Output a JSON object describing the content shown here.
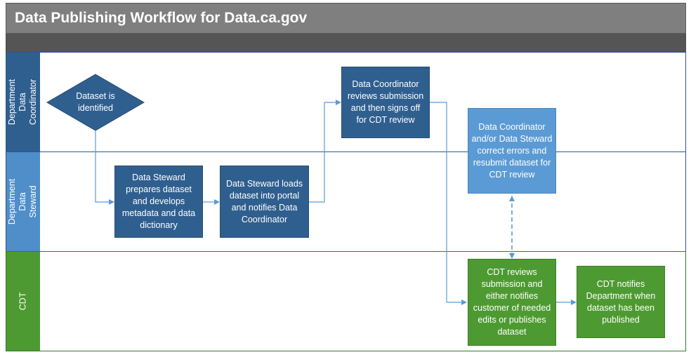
{
  "title": "Data Publishing Workflow for Data.ca.gov",
  "lanes": {
    "coordinator": "Department Data Coordinator",
    "steward": "Department Data Steward",
    "cdt": "CDT"
  },
  "nodes": {
    "dataset_identified": "Dataset is identified",
    "steward_prepares": "Data Steward prepares dataset and develops metadata and data dictionary",
    "steward_loads": "Data Steward loads dataset into portal and notifies Data Coordinator",
    "coordinator_reviews": "Data Coordinator reviews submission and then signs off for CDT review",
    "correct_errors": "Data Coordinator and/or Data Steward correct errors and resubmit dataset for CDT review",
    "cdt_reviews": "CDT reviews submission and either notifies customer of needed edits or publishes dataset",
    "cdt_notifies": "CDT notifies Department when dataset has been published"
  },
  "colors": {
    "title_bar": "#7f7f7f",
    "dark_blue": "#2f5f8f",
    "light_blue": "#5b9bd5",
    "green": "#4e9a32"
  }
}
